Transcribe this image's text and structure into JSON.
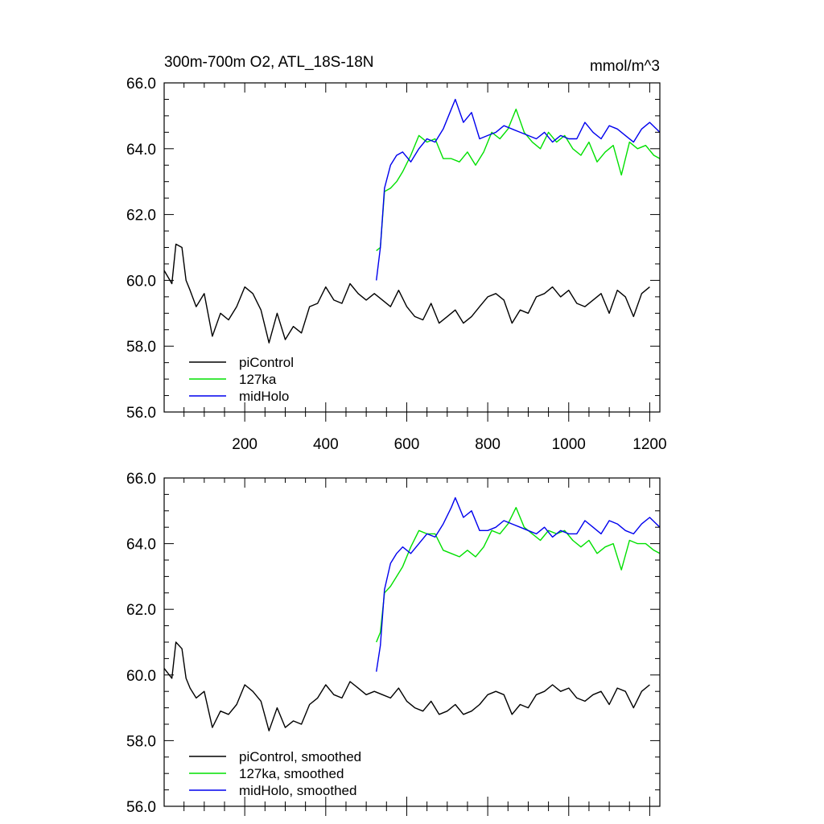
{
  "chart_data": [
    {
      "type": "line",
      "title": "300m-700m O2, ATL_18S-18N",
      "units": "mmol/m^3",
      "xlim": [
        1,
        1225
      ],
      "ylim": [
        56,
        66
      ],
      "grid": false,
      "legend_position": "bottom-left",
      "x_ticks": [
        200,
        400,
        600,
        800,
        1000,
        1200
      ],
      "x_tick_labels": [
        "200",
        "400",
        "600",
        "800",
        "1000",
        "1200"
      ],
      "y_ticks": [
        56,
        58,
        60,
        62,
        64,
        66
      ],
      "y_tick_labels": [
        "56.0",
        "58.0",
        "60.0",
        "62.0",
        "64.0",
        "66.0"
      ],
      "series": [
        {
          "name": "piControl",
          "color": "#000000",
          "x": [
            1,
            20,
            30,
            45,
            55,
            65,
            80,
            100,
            120,
            140,
            160,
            180,
            200,
            220,
            240,
            260,
            280,
            300,
            320,
            340,
            360,
            380,
            400,
            420,
            440,
            460,
            480,
            500,
            520,
            540,
            560,
            580,
            600,
            620,
            640,
            660,
            680,
            700,
            720,
            740,
            760,
            780,
            800,
            820,
            840,
            860,
            880,
            900,
            920,
            940,
            960,
            980,
            1000,
            1020,
            1040,
            1060,
            1080,
            1100,
            1120,
            1140,
            1160,
            1180,
            1200
          ],
          "y": [
            60.3,
            59.9,
            61.1,
            61.0,
            60.0,
            59.7,
            59.2,
            59.6,
            58.3,
            59.0,
            58.8,
            59.2,
            59.8,
            59.6,
            59.1,
            58.1,
            59.0,
            58.2,
            58.6,
            58.4,
            59.2,
            59.3,
            59.8,
            59.4,
            59.3,
            59.9,
            59.6,
            59.4,
            59.6,
            59.4,
            59.2,
            59.7,
            59.2,
            58.9,
            58.8,
            59.3,
            58.7,
            58.9,
            59.1,
            58.7,
            58.9,
            59.2,
            59.5,
            59.6,
            59.4,
            58.7,
            59.1,
            59.0,
            59.5,
            59.6,
            59.8,
            59.5,
            59.7,
            59.3,
            59.2,
            59.4,
            59.6,
            59.0,
            59.7,
            59.5,
            58.9,
            59.6,
            59.8
          ]
        },
        {
          "name": "127ka",
          "color": "#00e000",
          "x": [
            525,
            535,
            545,
            560,
            575,
            590,
            610,
            630,
            650,
            670,
            690,
            710,
            730,
            750,
            770,
            790,
            810,
            830,
            850,
            870,
            890,
            910,
            930,
            950,
            970,
            990,
            1010,
            1030,
            1050,
            1070,
            1090,
            1110,
            1130,
            1150,
            1170,
            1190,
            1210,
            1225
          ],
          "y": [
            60.9,
            61.0,
            62.7,
            62.8,
            63.0,
            63.3,
            63.8,
            64.4,
            64.2,
            64.3,
            63.7,
            63.7,
            63.6,
            63.9,
            63.5,
            63.9,
            64.5,
            64.3,
            64.6,
            65.2,
            64.5,
            64.2,
            64.0,
            64.5,
            64.2,
            64.4,
            64.0,
            63.8,
            64.2,
            63.6,
            63.9,
            64.1,
            63.2,
            64.2,
            64.0,
            64.1,
            63.8,
            63.7
          ]
        },
        {
          "name": "midHolo",
          "color": "#0000ee",
          "x": [
            525,
            535,
            545,
            560,
            575,
            590,
            610,
            630,
            650,
            670,
            690,
            710,
            720,
            740,
            760,
            780,
            800,
            820,
            840,
            860,
            880,
            900,
            920,
            940,
            960,
            980,
            1000,
            1020,
            1040,
            1060,
            1080,
            1100,
            1120,
            1140,
            1160,
            1180,
            1200,
            1225
          ],
          "y": [
            60.0,
            61.0,
            62.8,
            63.5,
            63.8,
            63.9,
            63.6,
            64.0,
            64.3,
            64.2,
            64.6,
            65.2,
            65.5,
            64.8,
            65.1,
            64.3,
            64.4,
            64.5,
            64.7,
            64.6,
            64.5,
            64.4,
            64.3,
            64.5,
            64.2,
            64.4,
            64.3,
            64.3,
            64.8,
            64.5,
            64.3,
            64.7,
            64.6,
            64.4,
            64.2,
            64.6,
            64.8,
            64.5
          ]
        }
      ]
    },
    {
      "type": "line",
      "title": "",
      "xlim": [
        1,
        1225
      ],
      "ylim": [
        56,
        66
      ],
      "grid": false,
      "legend_position": "bottom-left",
      "x_ticks": [
        200,
        400,
        600,
        800,
        1000,
        1200
      ],
      "x_tick_labels": [],
      "y_ticks": [
        56,
        58,
        60,
        62,
        64,
        66
      ],
      "y_tick_labels": [
        "56.0",
        "58.0",
        "60.0",
        "62.0",
        "64.0",
        "66.0"
      ],
      "series": [
        {
          "name": "piControl, smoothed",
          "color": "#000000",
          "x": [
            1,
            20,
            30,
            45,
            55,
            65,
            80,
            100,
            120,
            140,
            160,
            180,
            200,
            220,
            240,
            260,
            280,
            300,
            320,
            340,
            360,
            380,
            400,
            420,
            440,
            460,
            480,
            500,
            520,
            540,
            560,
            580,
            600,
            620,
            640,
            660,
            680,
            700,
            720,
            740,
            760,
            780,
            800,
            820,
            840,
            860,
            880,
            900,
            920,
            940,
            960,
            980,
            1000,
            1020,
            1040,
            1060,
            1080,
            1100,
            1120,
            1140,
            1160,
            1180,
            1200
          ],
          "y": [
            60.2,
            59.9,
            61.0,
            60.8,
            59.9,
            59.6,
            59.3,
            59.5,
            58.4,
            58.9,
            58.8,
            59.1,
            59.7,
            59.5,
            59.2,
            58.3,
            59.0,
            58.4,
            58.6,
            58.5,
            59.1,
            59.3,
            59.7,
            59.4,
            59.3,
            59.8,
            59.6,
            59.4,
            59.5,
            59.4,
            59.3,
            59.6,
            59.2,
            59.0,
            58.9,
            59.2,
            58.8,
            58.9,
            59.1,
            58.8,
            58.9,
            59.1,
            59.4,
            59.5,
            59.4,
            58.8,
            59.1,
            59.0,
            59.4,
            59.5,
            59.7,
            59.5,
            59.6,
            59.3,
            59.2,
            59.4,
            59.5,
            59.1,
            59.6,
            59.5,
            59.0,
            59.5,
            59.7
          ]
        },
        {
          "name": "127ka, smoothed",
          "color": "#00e000",
          "x": [
            525,
            535,
            545,
            560,
            575,
            590,
            610,
            630,
            650,
            670,
            690,
            710,
            730,
            750,
            770,
            790,
            810,
            830,
            850,
            870,
            890,
            910,
            930,
            950,
            970,
            990,
            1010,
            1030,
            1050,
            1070,
            1090,
            1110,
            1130,
            1150,
            1170,
            1190,
            1210,
            1225
          ],
          "y": [
            61.0,
            61.3,
            62.5,
            62.7,
            63.0,
            63.3,
            63.9,
            64.4,
            64.3,
            64.3,
            63.8,
            63.7,
            63.6,
            63.8,
            63.6,
            63.9,
            64.4,
            64.3,
            64.6,
            65.1,
            64.5,
            64.3,
            64.1,
            64.4,
            64.3,
            64.4,
            64.1,
            63.9,
            64.1,
            63.7,
            63.9,
            64.0,
            63.2,
            64.1,
            64.0,
            64.0,
            63.8,
            63.7
          ]
        },
        {
          "name": "midHolo, smoothed",
          "color": "#0000ee",
          "x": [
            525,
            535,
            545,
            560,
            575,
            590,
            610,
            630,
            650,
            670,
            690,
            710,
            720,
            740,
            760,
            780,
            800,
            820,
            840,
            860,
            880,
            900,
            920,
            940,
            960,
            980,
            1000,
            1020,
            1040,
            1060,
            1080,
            1100,
            1120,
            1140,
            1160,
            1180,
            1200,
            1225
          ],
          "y": [
            60.1,
            60.9,
            62.6,
            63.4,
            63.7,
            63.9,
            63.7,
            64.0,
            64.3,
            64.2,
            64.6,
            65.1,
            65.4,
            64.8,
            65.0,
            64.4,
            64.4,
            64.5,
            64.7,
            64.6,
            64.5,
            64.4,
            64.3,
            64.5,
            64.2,
            64.4,
            64.3,
            64.3,
            64.7,
            64.5,
            64.3,
            64.7,
            64.6,
            64.4,
            64.3,
            64.6,
            64.8,
            64.5
          ]
        }
      ]
    }
  ]
}
